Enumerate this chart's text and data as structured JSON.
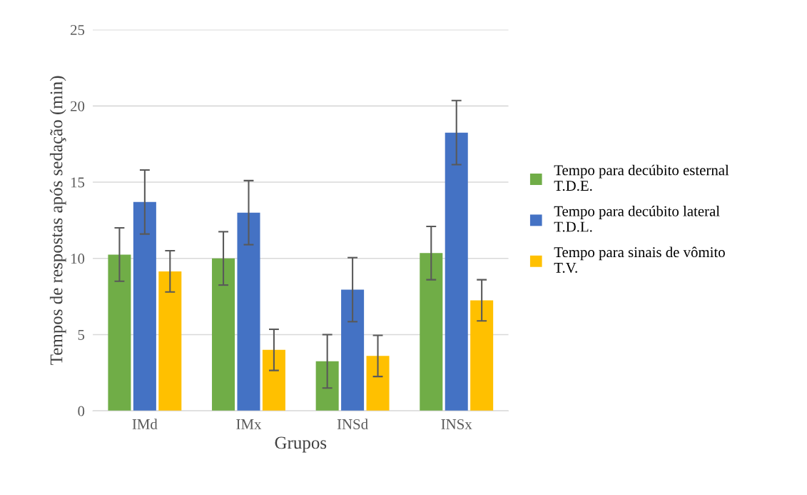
{
  "chart_data": {
    "type": "bar",
    "xlabel": "Grupos",
    "ylabel": "Tempos de respostas após sedação (min)",
    "categories": [
      "IMd",
      "IMx",
      "INSd",
      "INSx"
    ],
    "series": [
      {
        "name": "Tempo para decúbito esternal T.D.E.",
        "color": "#70ad47",
        "values": [
          10.25,
          10.0,
          3.25,
          10.35
        ],
        "errors": [
          1.75,
          1.75,
          1.75,
          1.75
        ]
      },
      {
        "name": "Tempo para decúbito lateral T.D.L.",
        "color": "#4472c4",
        "values": [
          13.7,
          13.0,
          7.95,
          18.25
        ],
        "errors": [
          2.1,
          2.1,
          2.1,
          2.1
        ]
      },
      {
        "name": "Tempo para sinais de vômito T.V.",
        "color": "#ffc000",
        "values": [
          9.15,
          4.0,
          3.6,
          7.25
        ],
        "errors": [
          1.35,
          1.35,
          1.35,
          1.35
        ]
      }
    ],
    "ylim": [
      0,
      25
    ],
    "yticks": [
      0,
      5,
      10,
      15,
      20,
      25
    ],
    "grid": "y",
    "legend": "right"
  }
}
